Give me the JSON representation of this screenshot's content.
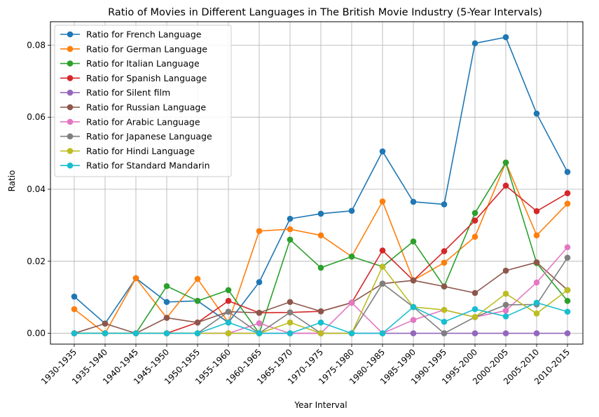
{
  "chart_data": {
    "type": "line",
    "title": "Ratio of Movies in Different Languages in The British Movie Industry (5-Year Intervals)",
    "xlabel": "Year Interval",
    "ylabel": "Ratio",
    "ylim": [
      -0.003,
      0.0865
    ],
    "yticks": [
      0.0,
      0.02,
      0.04,
      0.06,
      0.08
    ],
    "ytick_labels": [
      "0.00",
      "0.02",
      "0.04",
      "0.06",
      "0.08"
    ],
    "grid": true,
    "legend_position": "top-left",
    "categories": [
      "1930-1935",
      "1935-1940",
      "1940-1945",
      "1945-1950",
      "1950-1955",
      "1955-1960",
      "1960-1965",
      "1965-1970",
      "1970-1975",
      "1975-1980",
      "1980-1985",
      "1985-1990",
      "1990-1995",
      "1995-2000",
      "2000-2005",
      "2005-2010",
      "2010-2015"
    ],
    "series": [
      {
        "name": "Ratio for French Language",
        "color": "#1f77b4",
        "values": [
          0.0102,
          0.0027,
          0.0153,
          0.0087,
          0.009,
          0.003,
          0.0142,
          0.0318,
          0.0332,
          0.034,
          0.0505,
          0.0365,
          0.0358,
          0.0805,
          0.0822,
          0.061,
          0.0448
        ]
      },
      {
        "name": "Ratio for German Language",
        "color": "#ff7f0e",
        "values": [
          0.0067,
          0.0,
          0.0153,
          0.0043,
          0.0151,
          0.003,
          0.0284,
          0.0289,
          0.0272,
          0.0213,
          0.0366,
          0.0147,
          0.0196,
          0.0268,
          0.0474,
          0.0272,
          0.036
        ]
      },
      {
        "name": "Ratio for Italian Language",
        "color": "#2ca02c",
        "values": [
          0.0,
          0.0,
          0.0,
          0.0131,
          0.009,
          0.012,
          0.0,
          0.026,
          0.0182,
          0.0213,
          0.0185,
          0.0255,
          0.013,
          0.0334,
          0.0474,
          0.0195,
          0.009
        ]
      },
      {
        "name": "Ratio for Spanish Language",
        "color": "#d62728",
        "values": [
          0.0,
          0.0,
          0.0,
          0.0,
          0.003,
          0.009,
          0.0057,
          0.0058,
          0.0061,
          0.0085,
          0.023,
          0.0147,
          0.0228,
          0.0313,
          0.041,
          0.0339,
          0.0389
        ]
      },
      {
        "name": "Ratio for Silent film",
        "color": "#9467bd",
        "values": [
          0.0,
          0.0,
          0.0,
          0.0,
          0.0,
          0.0,
          0.0,
          0.0,
          0.0,
          0.0,
          0.0,
          0.0,
          0.0,
          0.0,
          0.0,
          0.0,
          0.0
        ]
      },
      {
        "name": "Ratio for Russian Language",
        "color": "#8c564b",
        "values": [
          0.0,
          0.0027,
          0.0,
          0.0043,
          0.003,
          0.006,
          0.0057,
          0.0087,
          0.0061,
          0.0085,
          0.0138,
          0.0147,
          0.013,
          0.0112,
          0.0174,
          0.0197,
          0.012
        ]
      },
      {
        "name": "Ratio for Arabic Language",
        "color": "#e377c2",
        "values": [
          0.0,
          0.0,
          0.0,
          0.0,
          0.0,
          0.0,
          0.0028,
          0.0,
          0.0,
          0.0085,
          0.0,
          0.0037,
          0.0065,
          0.0045,
          0.0063,
          0.0141,
          0.0239
        ]
      },
      {
        "name": "Ratio for Japanese Language",
        "color": "#7f7f7f",
        "values": [
          0.0,
          0.0,
          0.0,
          0.0,
          0.0,
          0.006,
          0.0,
          0.0058,
          0.0,
          0.0,
          0.0138,
          0.0073,
          0.0,
          0.0045,
          0.0079,
          0.008,
          0.021
        ]
      },
      {
        "name": "Ratio for Hindi Language",
        "color": "#bcbd22",
        "values": [
          0.0,
          0.0,
          0.0,
          0.0,
          0.0,
          0.0,
          0.0,
          0.003,
          0.0,
          0.0,
          0.0185,
          0.0073,
          0.0065,
          0.0045,
          0.011,
          0.0055,
          0.012
        ]
      },
      {
        "name": "Ratio for Standard Mandarin",
        "color": "#17becf",
        "values": [
          0.0,
          0.0,
          0.0,
          0.0,
          0.0,
          0.003,
          0.0,
          0.0,
          0.003,
          0.0,
          0.0,
          0.0073,
          0.0032,
          0.0067,
          0.0047,
          0.0085,
          0.006
        ]
      }
    ]
  }
}
